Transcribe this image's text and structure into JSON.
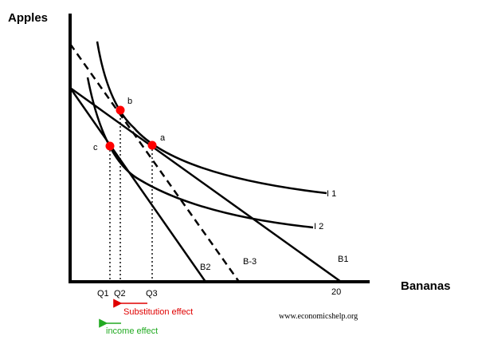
{
  "axes": {
    "y_title": "Apples",
    "x_title": "Bananas",
    "x_ticks": [
      "Q1",
      "Q2",
      "Q3",
      "20"
    ]
  },
  "curves": {
    "i1": "I 1",
    "i2": "I 2"
  },
  "budget_lines": {
    "b1": "B1",
    "b2": "B2",
    "b3": "B-3"
  },
  "points": {
    "a": "a",
    "b": "b",
    "c": "c"
  },
  "effects": {
    "substitution": "Substitution effect",
    "income": "income effect"
  },
  "credit": "www.economicshelp.org",
  "colors": {
    "point": "#ff0000",
    "substitution": "#e00000",
    "income": "#22aa22",
    "lines": "#000000"
  }
}
